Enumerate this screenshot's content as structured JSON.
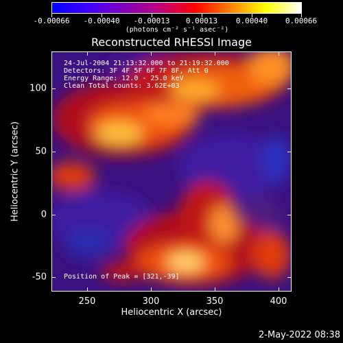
{
  "colorbar": {
    "labels": [
      "-0.00066",
      "-0.00040",
      "-0.00013",
      "0.00013",
      "0.00040",
      "0.00066"
    ],
    "unit": "(photons cm⁻² s⁻¹ asec⁻²)",
    "stops": [
      "#0000ff",
      "#3f00ff",
      "#7f00bf",
      "#bf007f",
      "#ff0000",
      "#ff7f00",
      "#ffff00",
      "#ffffff"
    ]
  },
  "title": "Reconstructed RHESSI Image",
  "info": {
    "line1": "24-Jul-2004 21:13:32.000 to 21:19:32.000",
    "line2": "Detectors: 3F 4F 5F 6F 7F 8F, Att 0",
    "line3": "Energy Range: 12.0 - 25.0 keV",
    "line4": "Clean    Total counts: 3.62E+03",
    "peak": "Position of Peak = [321,-39]"
  },
  "axes": {
    "xlabel": "Heliocentric X (arcsec)",
    "ylabel": "Heliocentric Y (arcsec)",
    "xticks": [
      "250",
      "300",
      "350",
      "400"
    ],
    "yticks": [
      "100",
      "50",
      "0",
      "-50"
    ]
  },
  "datestamp": "2-May-2022 08:38"
}
